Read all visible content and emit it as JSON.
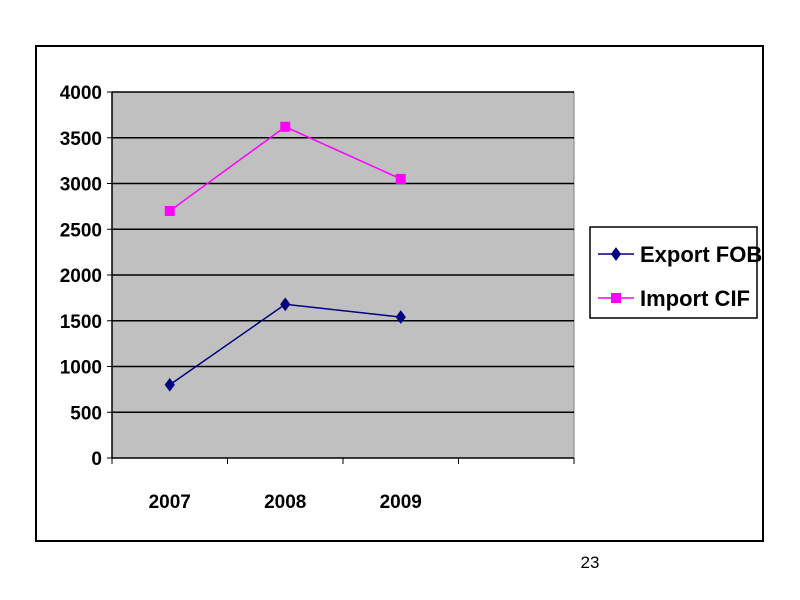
{
  "chart_data": {
    "type": "line",
    "title": "",
    "xlabel": "",
    "ylabel": "",
    "categories": [
      "2007",
      "2008",
      "2009"
    ],
    "ylim": [
      0,
      4000
    ],
    "y_ticks": [
      "0",
      "500",
      "1000",
      "1500",
      "2000",
      "2500",
      "3000",
      "3500",
      "4000"
    ],
    "grid": true,
    "legend_position": "right",
    "plot_background": "#c0c0c0",
    "series": [
      {
        "name": "Export FOB",
        "values": [
          800,
          1680,
          1540
        ],
        "color": "#000080",
        "marker": "diamond"
      },
      {
        "name": "Import CIF",
        "values": [
          2700,
          3620,
          3050
        ],
        "color": "#ff00ff",
        "marker": "square"
      }
    ]
  },
  "page": {
    "number": "23"
  }
}
